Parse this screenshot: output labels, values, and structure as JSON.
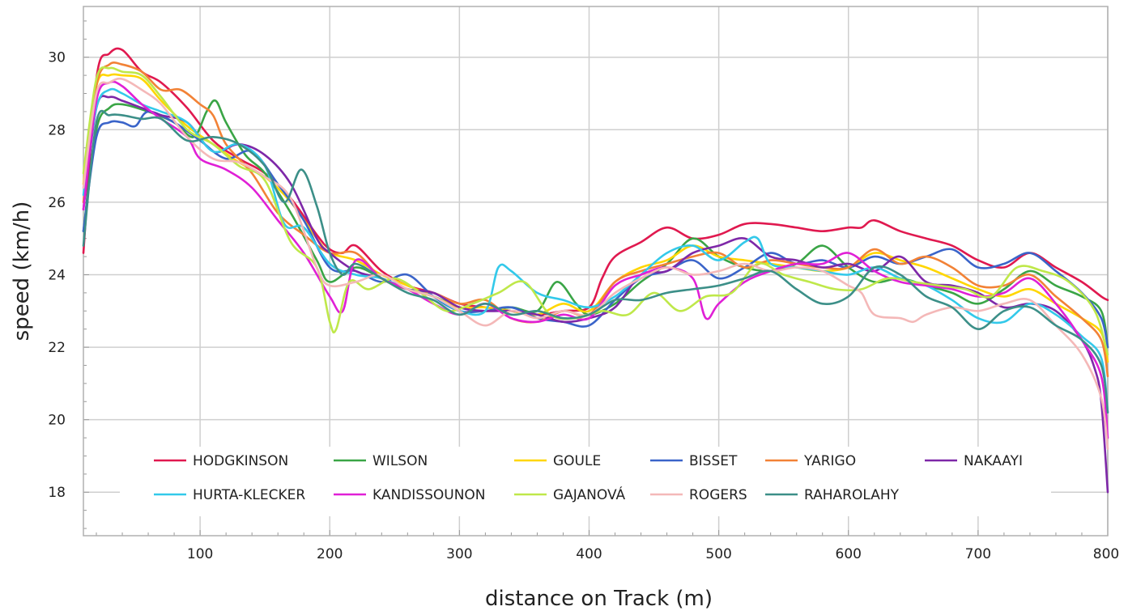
{
  "chart_data": {
    "type": "line",
    "title": "",
    "xlabel": "distance on Track (m)",
    "ylabel": "speed (km/h)",
    "xlim": [
      10,
      800
    ],
    "ylim": [
      16.8,
      31.4
    ],
    "xticks": [
      100,
      200,
      300,
      400,
      500,
      600,
      700,
      800
    ],
    "yticks": [
      18,
      20,
      22,
      24,
      26,
      28,
      30
    ],
    "grid": true,
    "legend_position": "bottom-center, inside plot",
    "series": [
      {
        "name": "HODGKINSON",
        "color": "#e0194f",
        "x": [
          10,
          20,
          30,
          40,
          55,
          70,
          90,
          110,
          130,
          150,
          170,
          190,
          200,
          210,
          220,
          240,
          260,
          280,
          300,
          320,
          340,
          360,
          380,
          400,
          410,
          420,
          440,
          460,
          480,
          500,
          520,
          540,
          560,
          580,
          600,
          610,
          620,
          640,
          660,
          680,
          700,
          720,
          740,
          760,
          780,
          795,
          800
        ],
        "y": [
          24.6,
          29.4,
          30.1,
          30.2,
          29.6,
          29.3,
          28.6,
          27.7,
          27.2,
          26.8,
          26.1,
          25.1,
          24.7,
          24.6,
          24.8,
          24.1,
          23.7,
          23.5,
          23.2,
          23.1,
          23.0,
          22.9,
          23.0,
          23.1,
          23.9,
          24.5,
          24.9,
          25.3,
          25.0,
          25.1,
          25.4,
          25.4,
          25.3,
          25.2,
          25.3,
          25.3,
          25.5,
          25.2,
          25.0,
          24.8,
          24.4,
          24.2,
          24.6,
          24.2,
          23.8,
          23.4,
          23.3
        ]
      },
      {
        "name": "WILSON",
        "color": "#3aa546",
        "x": [
          10,
          20,
          30,
          40,
          60,
          80,
          95,
          105,
          112,
          120,
          135,
          150,
          170,
          190,
          200,
          220,
          240,
          260,
          280,
          300,
          320,
          340,
          360,
          375,
          390,
          400,
          420,
          440,
          460,
          480,
          500,
          520,
          540,
          560,
          580,
          600,
          620,
          640,
          660,
          680,
          700,
          720,
          740,
          760,
          780,
          795,
          800
        ],
        "y": [
          25.2,
          28.0,
          28.6,
          28.7,
          28.5,
          28.2,
          27.8,
          28.5,
          28.8,
          28.2,
          27.3,
          26.8,
          25.7,
          24.4,
          23.8,
          24.2,
          23.9,
          23.6,
          23.4,
          23.1,
          23.0,
          23.1,
          23.0,
          23.8,
          23.2,
          22.9,
          23.2,
          23.8,
          24.3,
          25.0,
          24.5,
          24.2,
          24.1,
          24.3,
          24.8,
          24.2,
          23.8,
          23.9,
          23.7,
          23.5,
          23.2,
          23.6,
          24.1,
          23.7,
          23.4,
          23.0,
          22.0
        ]
      },
      {
        "name": "GOULE",
        "color": "#ffd600",
        "x": [
          10,
          20,
          30,
          40,
          55,
          70,
          90,
          110,
          130,
          150,
          170,
          190,
          200,
          220,
          240,
          260,
          280,
          300,
          320,
          340,
          360,
          380,
          400,
          420,
          440,
          460,
          480,
          500,
          520,
          540,
          560,
          580,
          600,
          620,
          640,
          660,
          680,
          700,
          720,
          740,
          760,
          780,
          795,
          800
        ],
        "y": [
          26.5,
          29.2,
          29.5,
          29.5,
          29.4,
          28.8,
          28.1,
          27.6,
          27.1,
          26.7,
          26.0,
          25.0,
          24.6,
          24.4,
          24.0,
          23.7,
          23.4,
          23.1,
          23.1,
          23.0,
          22.9,
          23.2,
          23.0,
          23.8,
          24.2,
          24.4,
          24.8,
          24.5,
          24.4,
          24.3,
          24.2,
          24.1,
          24.2,
          24.6,
          24.4,
          24.2,
          23.9,
          23.6,
          23.4,
          23.6,
          23.2,
          22.8,
          22.4,
          21.6
        ]
      },
      {
        "name": "BISSET",
        "color": "#3a64c9",
        "x": [
          10,
          20,
          30,
          40,
          50,
          60,
          80,
          100,
          120,
          140,
          160,
          180,
          200,
          220,
          240,
          260,
          280,
          300,
          320,
          340,
          360,
          380,
          400,
          420,
          440,
          460,
          480,
          500,
          520,
          540,
          560,
          580,
          600,
          620,
          640,
          660,
          680,
          700,
          720,
          740,
          760,
          780,
          795,
          800
        ],
        "y": [
          25.2,
          27.8,
          28.2,
          28.2,
          28.1,
          28.5,
          28.2,
          27.7,
          27.2,
          27.4,
          26.5,
          25.5,
          24.2,
          24.1,
          23.8,
          24.0,
          23.4,
          23.0,
          23.0,
          23.1,
          22.8,
          22.7,
          22.6,
          23.3,
          23.9,
          24.1,
          24.4,
          23.9,
          24.2,
          24.6,
          24.3,
          24.4,
          24.2,
          24.5,
          24.3,
          24.5,
          24.7,
          24.2,
          24.3,
          24.6,
          24.1,
          23.5,
          22.8,
          22.0
        ]
      },
      {
        "name": "YARIGO",
        "color": "#f28236",
        "x": [
          10,
          20,
          30,
          40,
          55,
          70,
          85,
          100,
          110,
          120,
          140,
          160,
          180,
          200,
          220,
          240,
          260,
          280,
          300,
          320,
          340,
          360,
          380,
          400,
          420,
          440,
          460,
          480,
          500,
          520,
          540,
          560,
          580,
          600,
          620,
          640,
          660,
          680,
          700,
          720,
          740,
          760,
          780,
          795,
          800
        ],
        "y": [
          26.0,
          29.2,
          29.8,
          29.8,
          29.6,
          29.1,
          29.1,
          28.7,
          28.4,
          27.6,
          26.8,
          25.7,
          25.1,
          24.6,
          24.6,
          23.9,
          23.6,
          23.5,
          23.2,
          23.3,
          22.8,
          22.7,
          23.0,
          22.9,
          23.8,
          24.1,
          24.3,
          24.5,
          24.6,
          24.2,
          24.4,
          24.3,
          24.2,
          24.2,
          24.7,
          24.3,
          24.5,
          24.2,
          23.7,
          23.7,
          24.0,
          23.4,
          22.8,
          22.2,
          21.2
        ]
      },
      {
        "name": "NAKAAYI",
        "color": "#7e28a8",
        "x": [
          10,
          20,
          30,
          40,
          55,
          70,
          90,
          110,
          130,
          150,
          170,
          190,
          200,
          220,
          240,
          260,
          280,
          300,
          320,
          340,
          360,
          380,
          400,
          420,
          440,
          460,
          480,
          500,
          520,
          540,
          560,
          580,
          600,
          620,
          640,
          660,
          680,
          700,
          720,
          740,
          760,
          780,
          790,
          795,
          800
        ],
        "y": [
          25.8,
          28.6,
          28.9,
          28.8,
          28.6,
          28.4,
          28.2,
          27.4,
          27.6,
          27.3,
          26.5,
          25.0,
          24.6,
          24.1,
          23.9,
          23.6,
          23.5,
          23.1,
          23.0,
          23.0,
          22.9,
          22.7,
          22.8,
          23.1,
          24.0,
          24.1,
          24.6,
          24.8,
          25.0,
          24.5,
          24.4,
          24.2,
          24.3,
          24.1,
          24.5,
          23.8,
          23.7,
          23.5,
          23.1,
          23.2,
          23.0,
          22.2,
          21.4,
          20.5,
          18.0
        ]
      },
      {
        "name": "HURTA-KLECKER",
        "color": "#33c9ea",
        "x": [
          10,
          20,
          30,
          40,
          55,
          70,
          90,
          110,
          130,
          150,
          165,
          180,
          200,
          220,
          240,
          260,
          280,
          300,
          320,
          330,
          340,
          360,
          380,
          400,
          420,
          440,
          460,
          480,
          500,
          520,
          530,
          540,
          560,
          580,
          600,
          620,
          640,
          660,
          680,
          700,
          720,
          740,
          760,
          780,
          795,
          800
        ],
        "y": [
          26.2,
          28.6,
          29.1,
          29.0,
          28.7,
          28.5,
          28.2,
          27.4,
          27.6,
          27.0,
          25.4,
          25.3,
          24.3,
          24.0,
          23.9,
          23.6,
          23.4,
          23.0,
          23.0,
          24.2,
          24.1,
          23.5,
          23.3,
          23.1,
          23.4,
          24.0,
          24.6,
          24.8,
          24.4,
          24.9,
          25.0,
          24.3,
          24.2,
          24.1,
          24.0,
          24.2,
          23.9,
          23.7,
          23.3,
          22.8,
          22.7,
          23.2,
          22.9,
          22.3,
          21.7,
          20.2
        ]
      },
      {
        "name": "KANDISSOUNON",
        "color": "#e020d6",
        "x": [
          10,
          20,
          30,
          40,
          55,
          70,
          90,
          100,
          120,
          140,
          160,
          180,
          200,
          210,
          220,
          240,
          260,
          280,
          300,
          320,
          340,
          360,
          380,
          400,
          420,
          440,
          460,
          480,
          490,
          500,
          520,
          540,
          560,
          580,
          600,
          620,
          640,
          660,
          680,
          700,
          720,
          740,
          760,
          780,
          795,
          800
        ],
        "y": [
          25.8,
          28.8,
          29.3,
          29.2,
          28.7,
          28.3,
          27.8,
          27.2,
          26.9,
          26.4,
          25.5,
          24.6,
          23.4,
          23.0,
          24.4,
          23.9,
          23.6,
          23.2,
          22.9,
          23.2,
          22.8,
          22.7,
          22.9,
          22.8,
          23.7,
          24.0,
          24.2,
          23.9,
          22.8,
          23.2,
          23.8,
          24.1,
          24.3,
          24.3,
          24.6,
          24.1,
          23.8,
          23.7,
          23.6,
          23.4,
          23.5,
          23.9,
          23.2,
          22.2,
          21.2,
          19.5
        ]
      },
      {
        "name": "GAJANOVÁ",
        "color": "#bfe84a",
        "x": [
          10,
          20,
          30,
          40,
          55,
          70,
          90,
          110,
          130,
          150,
          170,
          190,
          200,
          205,
          215,
          230,
          250,
          270,
          290,
          310,
          330,
          350,
          370,
          390,
          410,
          430,
          450,
          470,
          490,
          510,
          530,
          550,
          570,
          590,
          610,
          630,
          650,
          670,
          690,
          710,
          730,
          750,
          770,
          790,
          800
        ],
        "y": [
          26.8,
          29.4,
          29.7,
          29.6,
          29.5,
          28.9,
          28.0,
          27.6,
          27.0,
          26.6,
          24.9,
          24.2,
          22.7,
          22.5,
          23.8,
          23.6,
          23.9,
          23.5,
          23.0,
          23.2,
          23.5,
          23.8,
          22.9,
          22.8,
          23.0,
          22.9,
          23.5,
          23.0,
          23.4,
          23.5,
          24.3,
          24.0,
          23.8,
          23.6,
          23.6,
          23.9,
          23.8,
          23.7,
          23.6,
          23.4,
          24.2,
          24.1,
          23.8,
          23.0,
          21.8
        ]
      },
      {
        "name": "ROGERS",
        "color": "#f4b8b8",
        "x": [
          10,
          20,
          30,
          40,
          55,
          70,
          90,
          110,
          130,
          150,
          170,
          190,
          200,
          220,
          240,
          260,
          280,
          300,
          320,
          340,
          360,
          380,
          400,
          420,
          440,
          460,
          480,
          500,
          520,
          540,
          560,
          580,
          600,
          610,
          620,
          640,
          650,
          660,
          680,
          700,
          720,
          740,
          760,
          780,
          795,
          800
        ],
        "y": [
          26.4,
          29.0,
          29.3,
          29.4,
          29.1,
          28.7,
          27.8,
          27.2,
          27.1,
          26.7,
          26.1,
          24.2,
          23.7,
          23.8,
          24.0,
          23.6,
          23.4,
          23.0,
          22.6,
          23.0,
          22.8,
          23.0,
          22.9,
          23.5,
          23.9,
          24.2,
          24.0,
          24.1,
          24.3,
          24.1,
          24.2,
          24.1,
          23.7,
          23.5,
          22.9,
          22.8,
          22.7,
          22.9,
          23.1,
          23.0,
          23.2,
          23.3,
          22.6,
          21.8,
          20.6,
          19.2
        ]
      },
      {
        "name": "RAHAROLAHY",
        "color": "#3c8f88",
        "x": [
          10,
          20,
          30,
          40,
          55,
          70,
          90,
          110,
          130,
          150,
          165,
          178,
          190,
          200,
          210,
          220,
          240,
          260,
          280,
          300,
          320,
          340,
          360,
          380,
          400,
          420,
          440,
          460,
          480,
          500,
          520,
          540,
          560,
          580,
          600,
          620,
          640,
          660,
          680,
          700,
          720,
          740,
          760,
          780,
          795,
          800
        ],
        "y": [
          24.8,
          28.2,
          28.4,
          28.4,
          28.3,
          28.3,
          27.7,
          27.8,
          27.6,
          27.0,
          26.0,
          26.9,
          25.9,
          24.6,
          24.0,
          24.3,
          23.9,
          23.5,
          23.3,
          22.9,
          23.2,
          22.9,
          23.0,
          22.8,
          22.9,
          23.3,
          23.3,
          23.5,
          23.6,
          23.7,
          23.9,
          24.1,
          23.6,
          23.2,
          23.4,
          24.2,
          24.0,
          23.4,
          23.1,
          22.5,
          23.0,
          23.1,
          22.6,
          22.2,
          21.5,
          20.2
        ]
      }
    ]
  }
}
